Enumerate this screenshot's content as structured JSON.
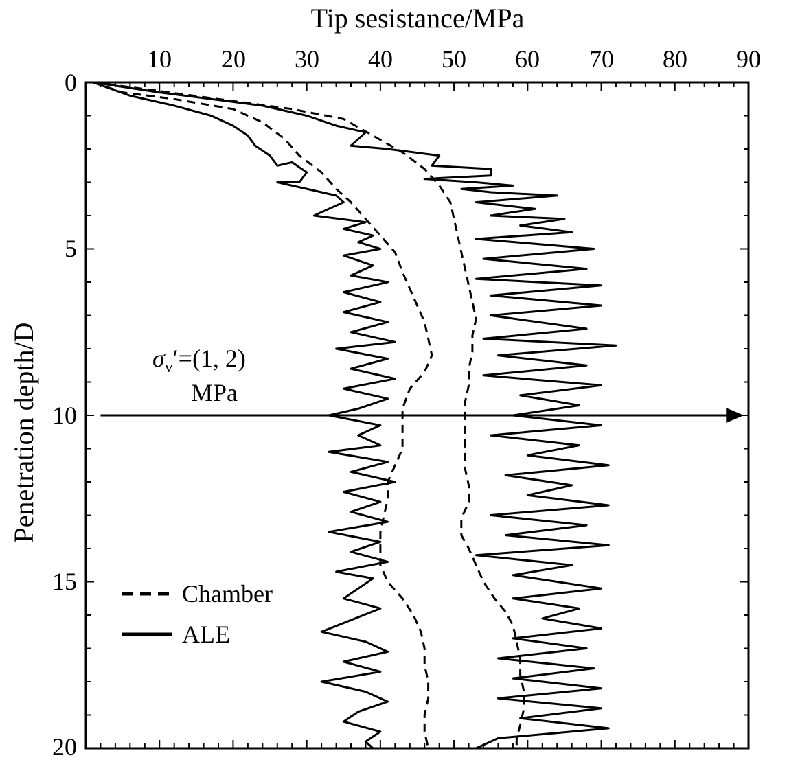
{
  "chart_data": {
    "type": "line",
    "title": "",
    "xlabel": "Tip sesistance/MPa",
    "ylabel": "Penetration depth/D",
    "xlim": [
      0,
      90
    ],
    "ylim": [
      0,
      20
    ],
    "y_inverted": true,
    "x_axis_position": "top",
    "x_ticks": [
      10,
      20,
      30,
      40,
      50,
      60,
      70,
      80,
      90
    ],
    "y_ticks": [
      0,
      5,
      10,
      15,
      20
    ],
    "x_tick_labels": [
      "10",
      "20",
      "30",
      "40",
      "50",
      "60",
      "70",
      "80",
      "90"
    ],
    "y_tick_labels": [
      "0",
      "5",
      "10",
      "15",
      "20"
    ],
    "grid": false,
    "legend": {
      "position": "bottom-left",
      "entries": [
        {
          "label": "Chamber",
          "style": "dashed"
        },
        {
          "label": "ALE",
          "style": "solid"
        }
      ]
    },
    "annotation": {
      "sigma": "σ",
      "sub": "v",
      "rest": "′=(1, 2)",
      "line2": "MPa",
      "arrow_depth": 10,
      "arrow_x_start": 2,
      "arrow_x_end": 89
    },
    "series": [
      {
        "name": "Chamber",
        "style": "dashed",
        "group": "sigma=1 MPa",
        "points": [
          [
            1,
            0
          ],
          [
            5,
            0.3
          ],
          [
            12,
            0.5
          ],
          [
            20,
            0.8
          ],
          [
            24,
            1.2
          ],
          [
            27,
            1.7
          ],
          [
            29,
            2.2
          ],
          [
            32,
            2.7
          ],
          [
            34,
            3.2
          ],
          [
            36,
            3.6
          ],
          [
            38,
            4.1
          ],
          [
            40,
            4.6
          ],
          [
            42,
            5.1
          ],
          [
            43,
            5.7
          ],
          [
            44,
            6.2
          ],
          [
            45,
            6.7
          ],
          [
            46,
            7.2
          ],
          [
            46.5,
            7.7
          ],
          [
            47,
            8.2
          ],
          [
            46,
            8.7
          ],
          [
            44,
            9.2
          ],
          [
            43,
            9.8
          ],
          [
            43,
            10.5
          ],
          [
            43,
            11.0
          ],
          [
            42,
            11.5
          ],
          [
            41,
            12.0
          ],
          [
            41,
            12.5
          ],
          [
            40.5,
            13.0
          ],
          [
            40,
            13.5
          ],
          [
            40,
            14.0
          ],
          [
            40,
            14.5
          ],
          [
            41,
            15.0
          ],
          [
            43,
            15.5
          ],
          [
            44.5,
            16.0
          ],
          [
            45.5,
            16.5
          ],
          [
            46,
            17.0
          ],
          [
            46,
            17.5
          ],
          [
            46.5,
            18.0
          ],
          [
            46.5,
            18.5
          ],
          [
            46,
            19.0
          ],
          [
            46,
            19.5
          ],
          [
            46.5,
            20.0
          ]
        ]
      },
      {
        "name": "Chamber",
        "style": "dashed",
        "group": "sigma=2 MPa",
        "points": [
          [
            1,
            0
          ],
          [
            8,
            0.2
          ],
          [
            18,
            0.5
          ],
          [
            28,
            0.8
          ],
          [
            35,
            1.1
          ],
          [
            39,
            1.6
          ],
          [
            43,
            2.1
          ],
          [
            46,
            2.6
          ],
          [
            48,
            3.1
          ],
          [
            49.5,
            3.6
          ],
          [
            50,
            4.1
          ],
          [
            50.5,
            4.6
          ],
          [
            51,
            5.1
          ],
          [
            51.5,
            5.6
          ],
          [
            52,
            6.1
          ],
          [
            52.5,
            6.6
          ],
          [
            53,
            7.1
          ],
          [
            52.5,
            7.6
          ],
          [
            52.5,
            8.1
          ],
          [
            52,
            8.6
          ],
          [
            52,
            9.1
          ],
          [
            51.5,
            9.6
          ],
          [
            51.5,
            10.1
          ],
          [
            51.5,
            10.6
          ],
          [
            51.5,
            11.1
          ],
          [
            51.5,
            11.6
          ],
          [
            52,
            12.1
          ],
          [
            52,
            12.6
          ],
          [
            51,
            13.1
          ],
          [
            51,
            13.6
          ],
          [
            52,
            14.0
          ],
          [
            53,
            14.5
          ],
          [
            54,
            15.0
          ],
          [
            55.5,
            15.5
          ],
          [
            57,
            15.9
          ],
          [
            58,
            16.3
          ],
          [
            58.5,
            16.8
          ],
          [
            59,
            17.3
          ],
          [
            59,
            17.8
          ],
          [
            59.5,
            18.3
          ],
          [
            59.5,
            18.8
          ],
          [
            59,
            19.3
          ],
          [
            58.5,
            19.7
          ],
          [
            58.5,
            20.0
          ]
        ]
      },
      {
        "name": "ALE",
        "style": "solid",
        "group": "sigma=1 MPa",
        "points": [
          [
            1,
            0
          ],
          [
            6,
            0.4
          ],
          [
            12,
            0.7
          ],
          [
            17,
            1.0
          ],
          [
            20,
            1.3
          ],
          [
            22,
            1.6
          ],
          [
            23,
            1.9
          ],
          [
            25,
            2.2
          ],
          [
            26,
            2.5
          ],
          [
            28,
            2.4
          ],
          [
            30,
            2.7
          ],
          [
            29,
            3.0
          ],
          [
            26,
            3.0
          ],
          [
            34,
            3.4
          ],
          [
            35,
            3.6
          ],
          [
            33,
            3.8
          ],
          [
            31,
            4.0
          ],
          [
            38,
            4.2
          ],
          [
            35,
            4.4
          ],
          [
            39,
            4.6
          ],
          [
            37,
            4.8
          ],
          [
            40,
            5.0
          ],
          [
            35,
            5.2
          ],
          [
            39,
            5.5
          ],
          [
            36,
            5.8
          ],
          [
            41,
            6.0
          ],
          [
            35,
            6.3
          ],
          [
            40,
            6.6
          ],
          [
            35,
            6.9
          ],
          [
            41,
            7.2
          ],
          [
            36,
            7.5
          ],
          [
            42,
            7.8
          ],
          [
            34,
            8.0
          ],
          [
            41,
            8.3
          ],
          [
            36,
            8.6
          ],
          [
            42,
            8.9
          ],
          [
            35,
            9.2
          ],
          [
            41,
            9.5
          ],
          [
            37,
            9.8
          ],
          [
            33,
            10.0
          ],
          [
            40,
            10.3
          ],
          [
            37,
            10.6
          ],
          [
            40,
            10.9
          ],
          [
            33,
            11.1
          ],
          [
            41,
            11.4
          ],
          [
            36,
            11.7
          ],
          [
            42,
            12.0
          ],
          [
            35,
            12.3
          ],
          [
            40,
            12.6
          ],
          [
            36,
            12.9
          ],
          [
            41,
            13.2
          ],
          [
            33,
            13.5
          ],
          [
            40,
            13.8
          ],
          [
            36,
            14.1
          ],
          [
            41,
            14.4
          ],
          [
            34,
            14.7
          ],
          [
            39,
            14.9
          ],
          [
            37,
            15.2
          ],
          [
            35,
            15.5
          ],
          [
            40,
            15.8
          ],
          [
            32,
            16.5
          ],
          [
            38,
            16.8
          ],
          [
            41,
            17.1
          ],
          [
            35,
            17.4
          ],
          [
            40,
            17.7
          ],
          [
            32,
            18.0
          ],
          [
            38,
            18.3
          ],
          [
            41,
            18.6
          ],
          [
            37,
            18.9
          ],
          [
            35,
            19.2
          ],
          [
            40,
            19.5
          ],
          [
            38,
            19.8
          ],
          [
            39,
            20.0
          ]
        ]
      },
      {
        "name": "ALE",
        "style": "solid",
        "group": "sigma=2 MPa",
        "points": [
          [
            1,
            0
          ],
          [
            10,
            0.3
          ],
          [
            24,
            0.7
          ],
          [
            30,
            1.0
          ],
          [
            34,
            1.3
          ],
          [
            38,
            1.5
          ],
          [
            36,
            1.9
          ],
          [
            41,
            2.0
          ],
          [
            48,
            2.2
          ],
          [
            47,
            2.5
          ],
          [
            55,
            2.6
          ],
          [
            55,
            2.8
          ],
          [
            46,
            2.9
          ],
          [
            53,
            3.0
          ],
          [
            58,
            3.1
          ],
          [
            51,
            3.2
          ],
          [
            55,
            3.3
          ],
          [
            64,
            3.4
          ],
          [
            53,
            3.6
          ],
          [
            61,
            3.8
          ],
          [
            55,
            4.0
          ],
          [
            65,
            4.1
          ],
          [
            59,
            4.3
          ],
          [
            66,
            4.5
          ],
          [
            53,
            4.7
          ],
          [
            69,
            5.0
          ],
          [
            54,
            5.3
          ],
          [
            68,
            5.6
          ],
          [
            53,
            5.9
          ],
          [
            70,
            6.1
          ],
          [
            55,
            6.4
          ],
          [
            70,
            6.7
          ],
          [
            55,
            7.0
          ],
          [
            68,
            7.4
          ],
          [
            54,
            7.7
          ],
          [
            72,
            7.9
          ],
          [
            56,
            8.2
          ],
          [
            68,
            8.5
          ],
          [
            54,
            8.8
          ],
          [
            70,
            9.1
          ],
          [
            59,
            9.4
          ],
          [
            67,
            9.7
          ],
          [
            58,
            10.0
          ],
          [
            70,
            10.3
          ],
          [
            55,
            10.6
          ],
          [
            67,
            10.9
          ],
          [
            60,
            11.2
          ],
          [
            71,
            11.5
          ],
          [
            57,
            11.8
          ],
          [
            66,
            12.1
          ],
          [
            60,
            12.4
          ],
          [
            71,
            12.7
          ],
          [
            55,
            13.0
          ],
          [
            68,
            13.3
          ],
          [
            57,
            13.6
          ],
          [
            71,
            13.9
          ],
          [
            53,
            14.2
          ],
          [
            66,
            14.5
          ],
          [
            58,
            14.8
          ],
          [
            70,
            15.2
          ],
          [
            58,
            15.5
          ],
          [
            67,
            15.8
          ],
          [
            62,
            16.1
          ],
          [
            70,
            16.4
          ],
          [
            58,
            16.7
          ],
          [
            68,
            17.0
          ],
          [
            56,
            17.3
          ],
          [
            69,
            17.6
          ],
          [
            58,
            17.9
          ],
          [
            70,
            18.2
          ],
          [
            56,
            18.5
          ],
          [
            70,
            18.8
          ],
          [
            59,
            19.1
          ],
          [
            71,
            19.4
          ],
          [
            56,
            19.7
          ],
          [
            53,
            20.0
          ]
        ]
      }
    ]
  }
}
